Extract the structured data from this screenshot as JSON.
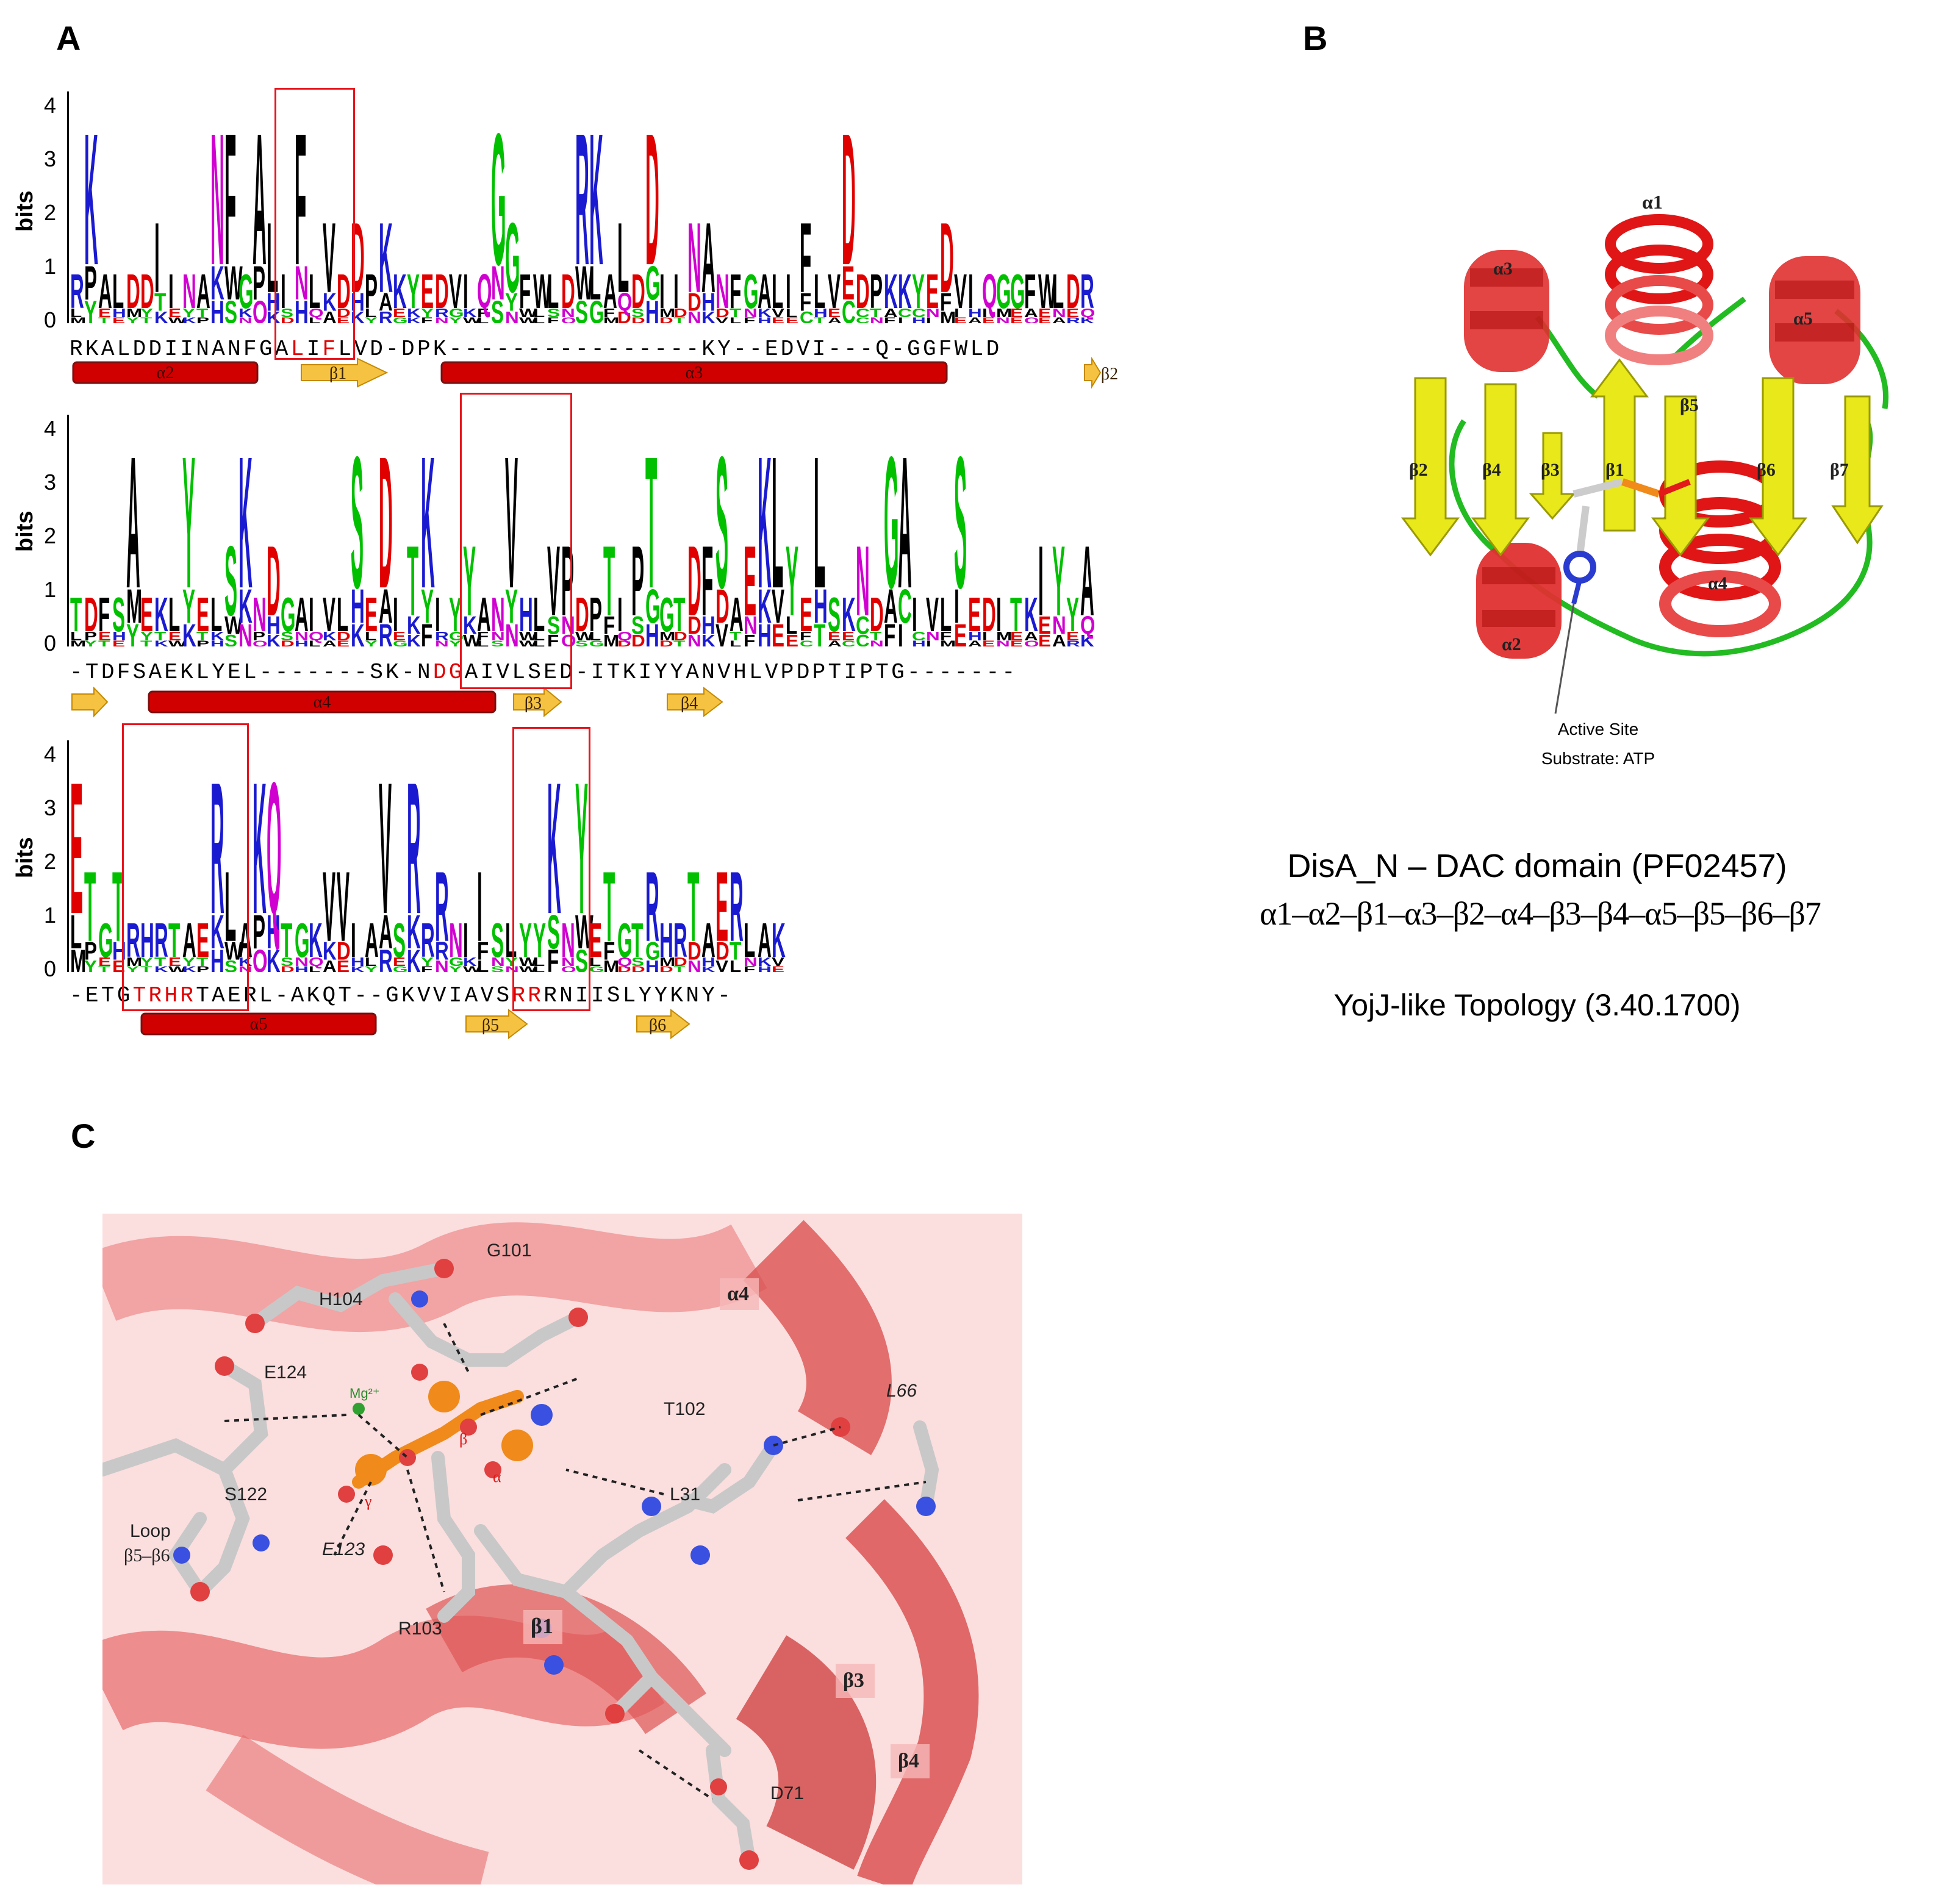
{
  "panels": {
    "a": "A",
    "b": "B",
    "c": "C"
  },
  "panel_a": {
    "y_axis_label": "bits",
    "y_ticks": [
      "4",
      "3",
      "2",
      "1",
      "0"
    ],
    "rows": [
      {
        "sequence": "RKALDDIINANFGALIFLVD-DPK----------------KY--EDVI---Q-GGFWLD",
        "ss_elements": [
          {
            "type": "helix",
            "label": "α2"
          },
          {
            "type": "strand",
            "label": "β1"
          },
          {
            "type": "helix",
            "label": "α3"
          },
          {
            "type": "strand",
            "label": "β2"
          }
        ]
      },
      {
        "sequence": "-TDFSAEKLYEL-------SK-NDGAIVLSED-ITKIYYANVHLVPDPTIPTG-------",
        "ss_elements": [
          {
            "type": "strand",
            "label": ""
          },
          {
            "type": "helix",
            "label": "α4"
          },
          {
            "type": "strand",
            "label": "β3"
          },
          {
            "type": "strand",
            "label": "β4"
          }
        ]
      },
      {
        "sequence": "-ETGTRHRTAERL-AKQT--GKVVIAVSRRRNIISLYYKNY-",
        "ss_elements": [
          {
            "type": "helix",
            "label": "α5"
          },
          {
            "type": "strand",
            "label": "β5"
          },
          {
            "type": "strand",
            "label": "β6"
          }
        ]
      }
    ],
    "colors": {
      "acidic": "#e00000",
      "basic": "#1a1ad0",
      "polar": "#00c000",
      "amide": "#d000d0",
      "hydrophobic": "#000000",
      "box": "#e8141c",
      "helix": "#d10000",
      "strand": "#f5c242"
    }
  },
  "panel_b": {
    "structure_labels": [
      "α1",
      "α2",
      "α3",
      "α4",
      "α5",
      "β1",
      "β2",
      "β3",
      "β4",
      "β5",
      "β6",
      "β7"
    ],
    "active_site": "Active Site",
    "substrate": "Substrate: ATP",
    "domain_title": "DisA_N – DAC domain (PF02457)",
    "topology_string": "α1–α2–β1–α3–β2–α4–β3–β4–α5–β5–β6–β7",
    "topology_class": "YojJ-like Topology (3.40.1700)"
  },
  "panel_c": {
    "residues": [
      "G101",
      "H104",
      "E124",
      "T102",
      "L66",
      "S122",
      "L31",
      "Loop",
      "β5–β6",
      "E123",
      "R103",
      "D71"
    ],
    "ss_labels": [
      "α4",
      "β1",
      "β3",
      "β4"
    ],
    "ion": "Mg²⁺",
    "phosphates": [
      "γ",
      "β",
      "α"
    ]
  }
}
